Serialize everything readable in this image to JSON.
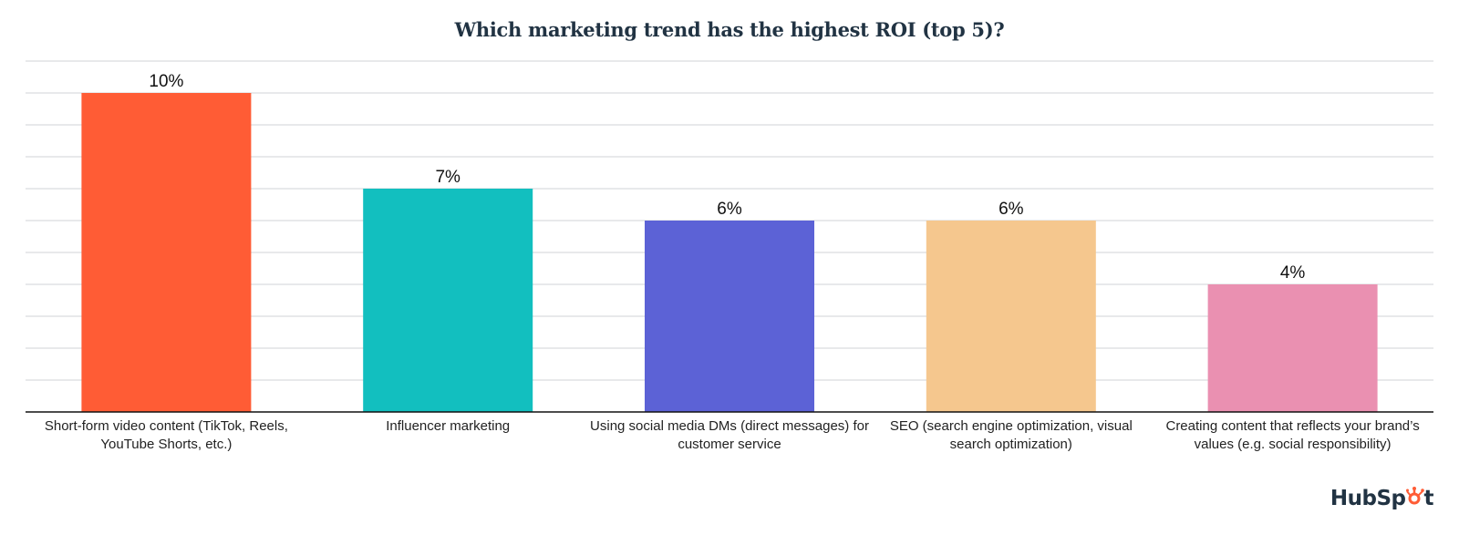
{
  "chart_data": {
    "type": "bar",
    "title": "Which marketing trend has the highest ROI (top 5)?",
    "categories": [
      "Short-form video content (TikTok, Reels, YouTube Shorts, etc.)",
      "Influencer marketing",
      "Using social media DMs (direct messages) for customer service",
      "SEO (search engine optimization, visual search optimization)",
      "Creating content that reflects your brand’s values (e.g. social responsibility)"
    ],
    "values": [
      10,
      7,
      6,
      6,
      4
    ],
    "value_labels": [
      "10%",
      "7%",
      "6%",
      "6%",
      "4%"
    ],
    "colors": [
      "#ff5c35",
      "#12bfbf",
      "#5c62d6",
      "#f5c78e",
      "#ea90b1"
    ],
    "xlabel": "",
    "ylabel": "",
    "ylim": [
      0,
      11
    ],
    "grid": true,
    "y_tick_labels_visible": false,
    "legend": "none"
  },
  "branding": {
    "logo_text_pre": "HubSp",
    "logo_text_o": "o",
    "logo_text_post": "t"
  }
}
